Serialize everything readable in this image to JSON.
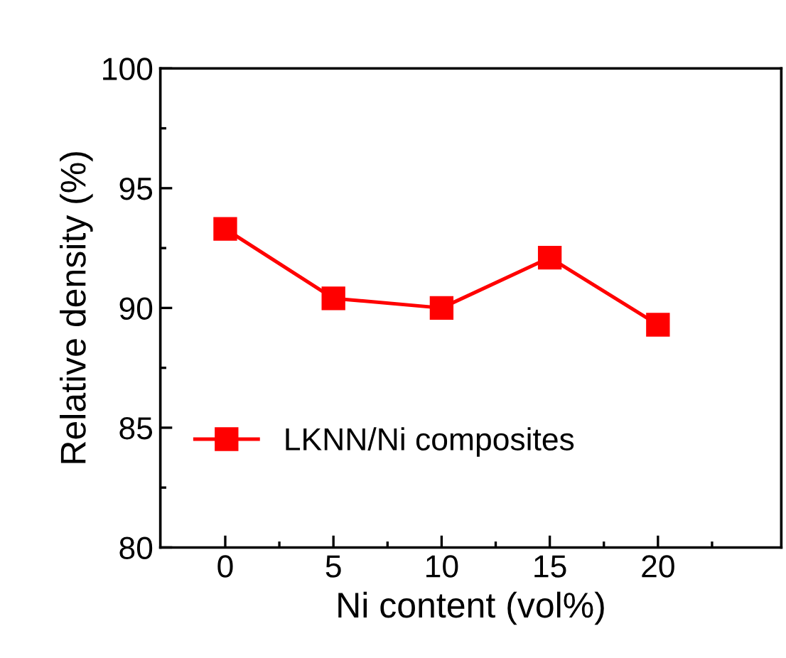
{
  "chart_data": {
    "type": "line",
    "xlabel": "Ni content (vol%)",
    "ylabel": "Relative density (%)",
    "x": [
      0,
      5,
      10,
      15,
      20
    ],
    "series": [
      {
        "name": "LKNN/Ni composites",
        "color": "#ff0000",
        "values": [
          93.3,
          90.4,
          90.0,
          92.1,
          89.3
        ]
      }
    ],
    "xlim": [
      -3,
      25.7
    ],
    "xticks": [
      0,
      {
        "value": 2.5,
        "label": null
      },
      5,
      {
        "value": 7.5,
        "label": null
      },
      10,
      {
        "value": 12.5,
        "label": null
      },
      15,
      {
        "value": 17.5,
        "label": null
      },
      20,
      {
        "value": 22.5,
        "label": null
      }
    ],
    "ylim": [
      80,
      100
    ],
    "yticks": [
      80,
      {
        "value": 82.5,
        "label": null
      },
      85,
      {
        "value": 87.5,
        "label": null
      },
      90,
      {
        "value": 92.5,
        "label": null
      },
      95,
      {
        "value": 97.5,
        "label": null
      },
      100
    ],
    "grid": false,
    "legend": "bottom left",
    "marker": "square",
    "line_style": "solid"
  }
}
